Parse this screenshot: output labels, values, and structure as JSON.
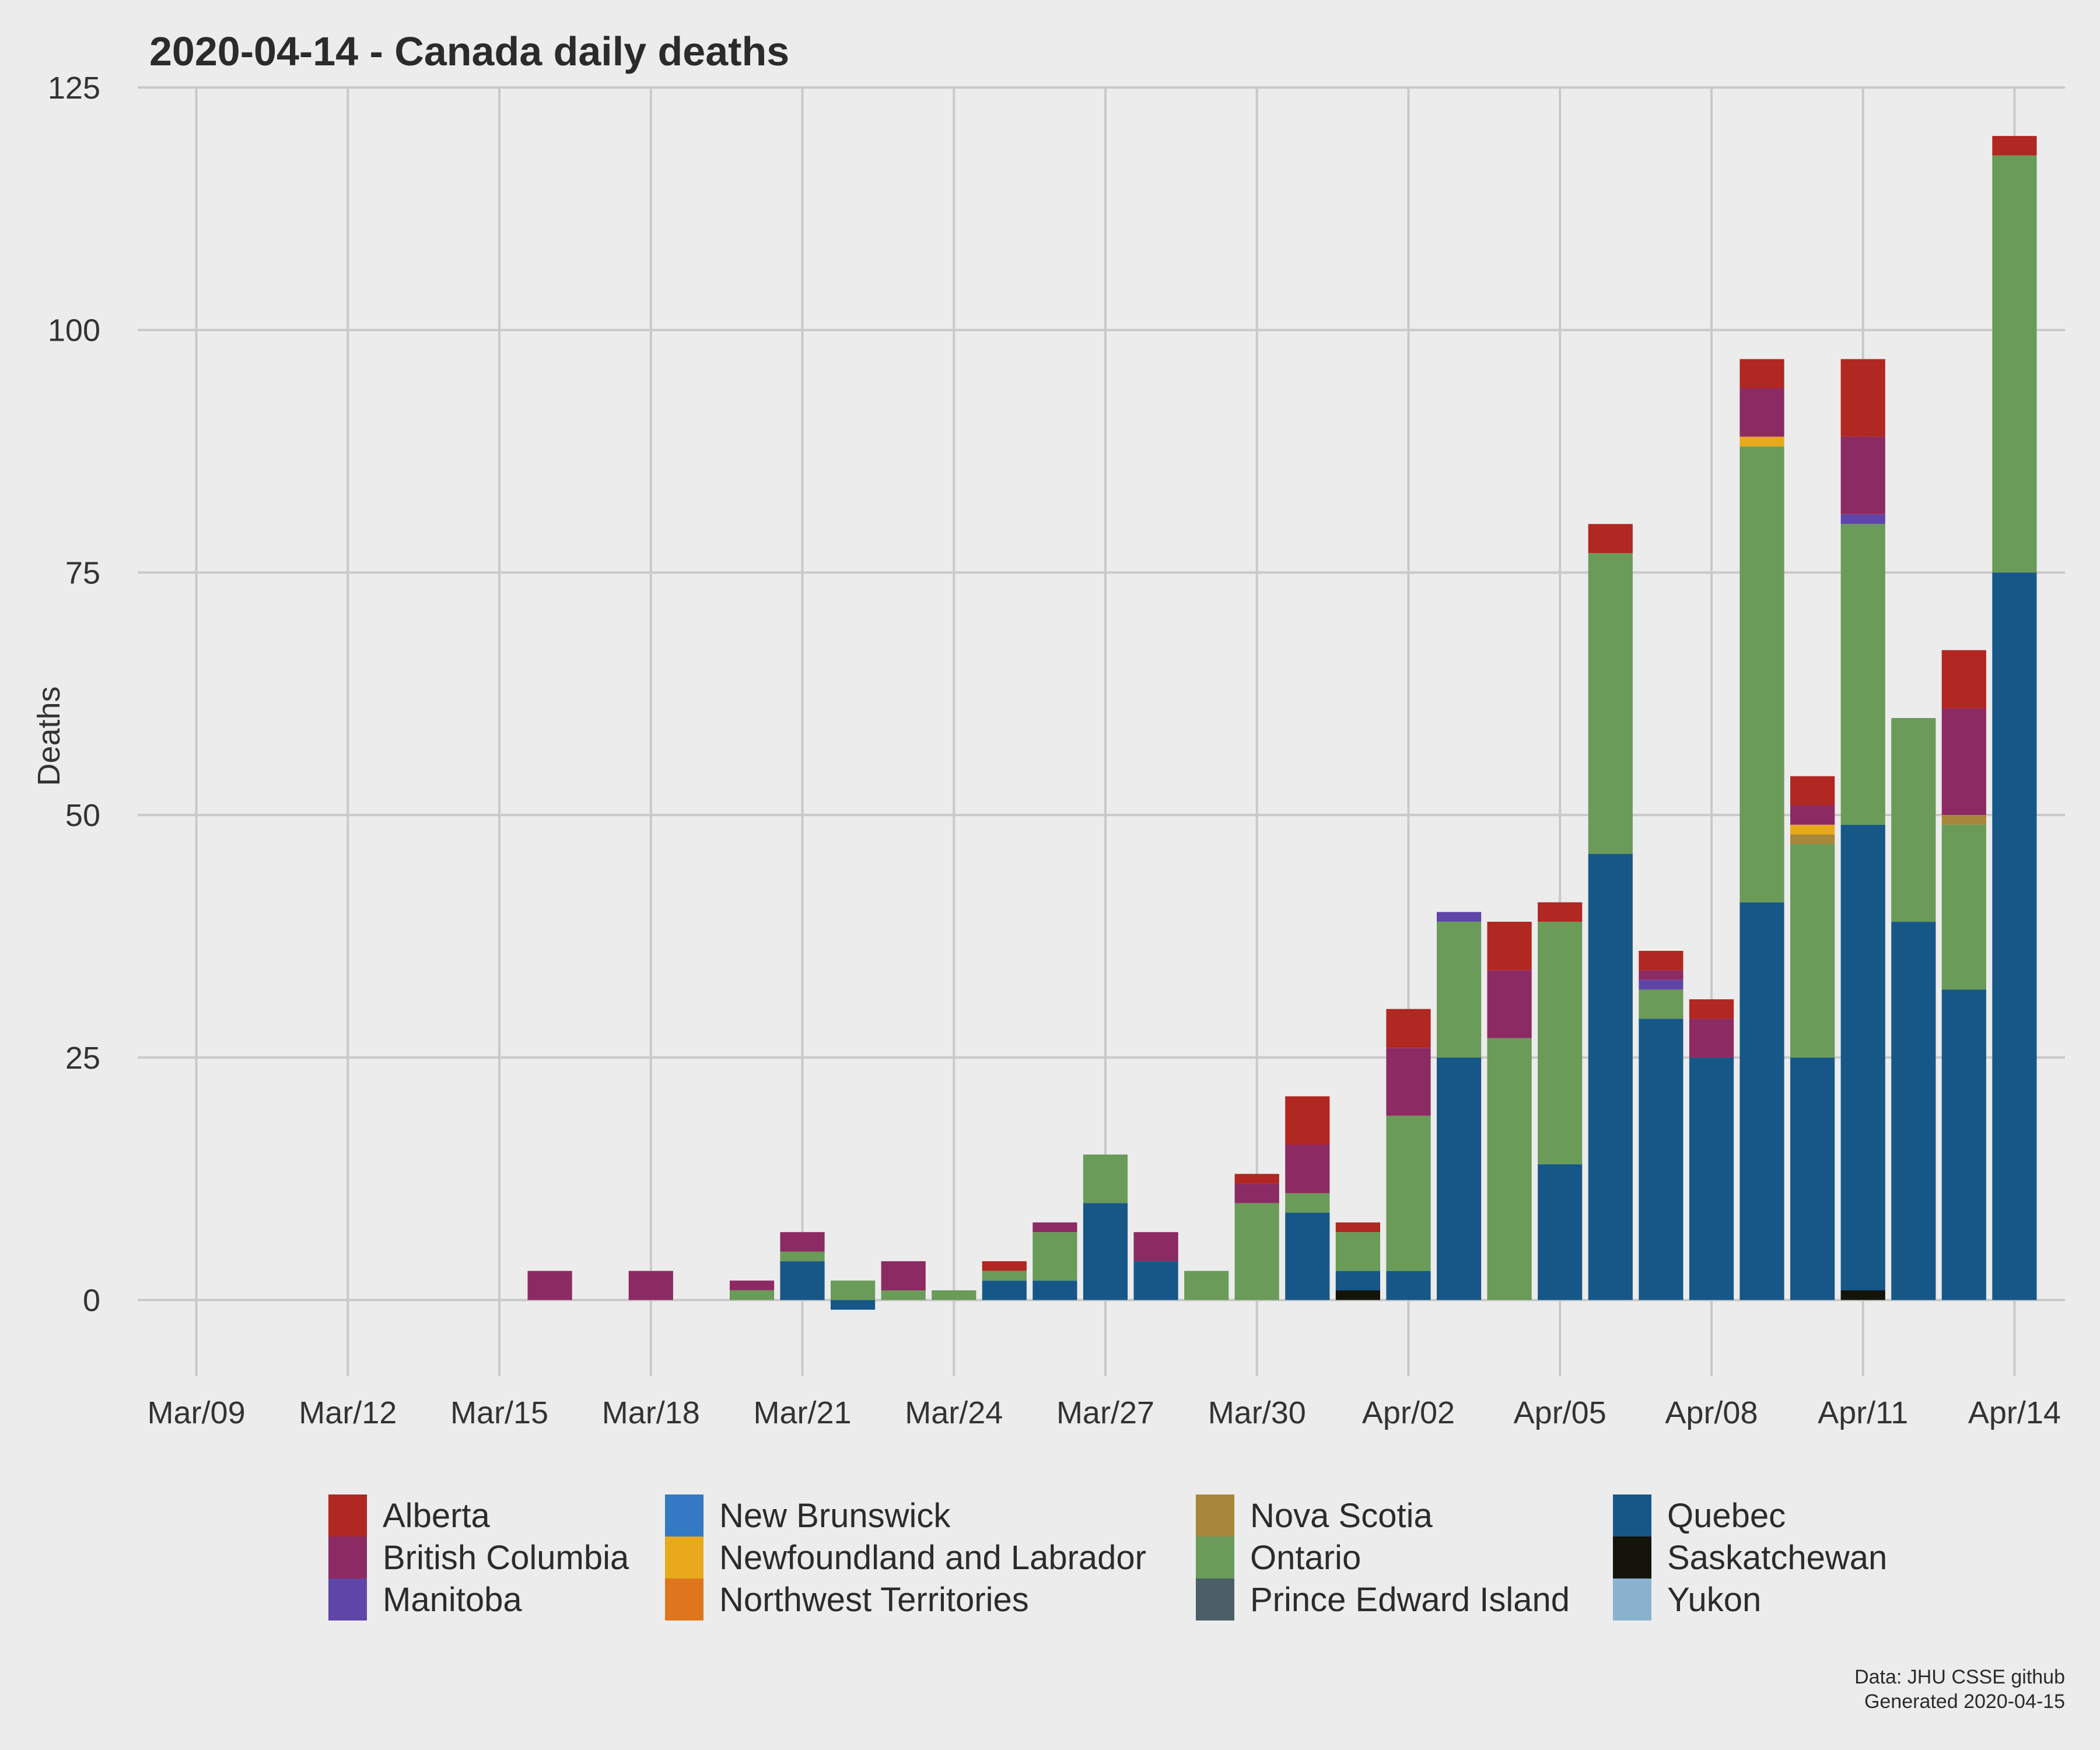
{
  "chart_data": {
    "type": "bar",
    "stacked": true,
    "title": "2020-04-14 - Canada daily deaths",
    "ylabel": "Deaths",
    "xlabel": "",
    "ylim": [
      -7,
      125
    ],
    "y_ticks": [
      0,
      25,
      50,
      75,
      100,
      125
    ],
    "x_range": [
      "2020-03-08",
      "2020-04-15"
    ],
    "x_ticks": [
      {
        "date": "2020-03-09",
        "label": "Mar/09"
      },
      {
        "date": "2020-03-12",
        "label": "Mar/12"
      },
      {
        "date": "2020-03-15",
        "label": "Mar/15"
      },
      {
        "date": "2020-03-18",
        "label": "Mar/18"
      },
      {
        "date": "2020-03-21",
        "label": "Mar/21"
      },
      {
        "date": "2020-03-24",
        "label": "Mar/24"
      },
      {
        "date": "2020-03-27",
        "label": "Mar/27"
      },
      {
        "date": "2020-03-30",
        "label": "Mar/30"
      },
      {
        "date": "2020-04-02",
        "label": "Apr/02"
      },
      {
        "date": "2020-04-05",
        "label": "Apr/05"
      },
      {
        "date": "2020-04-08",
        "label": "Apr/08"
      },
      {
        "date": "2020-04-11",
        "label": "Apr/11"
      },
      {
        "date": "2020-04-14",
        "label": "Apr/14"
      }
    ],
    "grid": true,
    "legend_position": "bottom",
    "dates": [
      "2020-03-16",
      "2020-03-18",
      "2020-03-20",
      "2020-03-21",
      "2020-03-22",
      "2020-03-23",
      "2020-03-24",
      "2020-03-25",
      "2020-03-26",
      "2020-03-27",
      "2020-03-28",
      "2020-03-29",
      "2020-03-30",
      "2020-03-31",
      "2020-04-01",
      "2020-04-02",
      "2020-04-03",
      "2020-04-04",
      "2020-04-05",
      "2020-04-06",
      "2020-04-07",
      "2020-04-08",
      "2020-04-09",
      "2020-04-10",
      "2020-04-11",
      "2020-04-12",
      "2020-04-13",
      "2020-04-14"
    ],
    "series": [
      {
        "name": "Saskatchewan",
        "color": "#14140a",
        "values": [
          0,
          0,
          0,
          0,
          0,
          0,
          0,
          0,
          0,
          0,
          0,
          0,
          0,
          0,
          1,
          0,
          0,
          0,
          0,
          0,
          0,
          0,
          0,
          0,
          1,
          0,
          0,
          0
        ]
      },
      {
        "name": "Quebec",
        "color": "#175788",
        "values": [
          0,
          0,
          0,
          4,
          -1,
          0,
          0,
          2,
          2,
          10,
          4,
          0,
          0,
          9,
          2,
          3,
          25,
          0,
          14,
          46,
          29,
          25,
          41,
          25,
          48,
          39,
          32,
          75
        ]
      },
      {
        "name": "Ontario",
        "color": "#6a9b58",
        "values": [
          0,
          0,
          1,
          1,
          2,
          1,
          1,
          1,
          5,
          5,
          0,
          3,
          10,
          2,
          4,
          16,
          14,
          27,
          25,
          31,
          3,
          0,
          47,
          22,
          31,
          21,
          17,
          43
        ]
      },
      {
        "name": "Nova Scotia",
        "color": "#a8863a",
        "values": [
          0,
          0,
          0,
          0,
          0,
          0,
          0,
          0,
          0,
          0,
          0,
          0,
          0,
          0,
          0,
          0,
          0,
          0,
          0,
          0,
          0,
          0,
          0,
          1,
          0,
          0,
          1,
          0
        ]
      },
      {
        "name": "Newfoundland and Labrador",
        "color": "#e8aa1c",
        "values": [
          0,
          0,
          0,
          0,
          0,
          0,
          0,
          0,
          0,
          0,
          0,
          0,
          0,
          0,
          0,
          0,
          0,
          0,
          0,
          0,
          0,
          0,
          1,
          1,
          0,
          0,
          0,
          0
        ]
      },
      {
        "name": "Manitoba",
        "color": "#6045a8",
        "values": [
          0,
          0,
          0,
          0,
          0,
          0,
          0,
          0,
          0,
          0,
          0,
          0,
          0,
          0,
          0,
          0,
          1,
          0,
          0,
          0,
          1,
          0,
          0,
          0,
          1,
          0,
          0,
          0
        ]
      },
      {
        "name": "British Columbia",
        "color": "#8c2a63",
        "values": [
          3,
          3,
          1,
          2,
          0,
          3,
          0,
          0,
          1,
          0,
          3,
          0,
          2,
          5,
          0,
          7,
          0,
          7,
          0,
          0,
          1,
          4,
          5,
          2,
          8,
          0,
          11,
          0
        ]
      },
      {
        "name": "Alberta",
        "color": "#b12721",
        "values": [
          0,
          0,
          0,
          0,
          0,
          0,
          0,
          1,
          0,
          0,
          0,
          0,
          1,
          5,
          1,
          4,
          0,
          5,
          2,
          3,
          2,
          2,
          3,
          3,
          8,
          0,
          6,
          2
        ]
      }
    ],
    "legend": [
      {
        "name": "Alberta",
        "color": "#b12721"
      },
      {
        "name": "British Columbia",
        "color": "#8c2a63"
      },
      {
        "name": "Manitoba",
        "color": "#6045a8"
      },
      {
        "name": "New Brunswick",
        "color": "#3479c4"
      },
      {
        "name": "Newfoundland and Labrador",
        "color": "#e8aa1c"
      },
      {
        "name": "Northwest Territories",
        "color": "#df761d"
      },
      {
        "name": "Nova Scotia",
        "color": "#a8863a"
      },
      {
        "name": "Ontario",
        "color": "#6a9b58"
      },
      {
        "name": "Prince Edward Island",
        "color": "#4a5f66"
      },
      {
        "name": "Quebec",
        "color": "#175788"
      },
      {
        "name": "Saskatchewan",
        "color": "#14140a"
      },
      {
        "name": "Yukon",
        "color": "#89b2cf"
      }
    ],
    "caption": [
      "Data: JHU CSSE github",
      "Generated 2020-04-15"
    ]
  }
}
